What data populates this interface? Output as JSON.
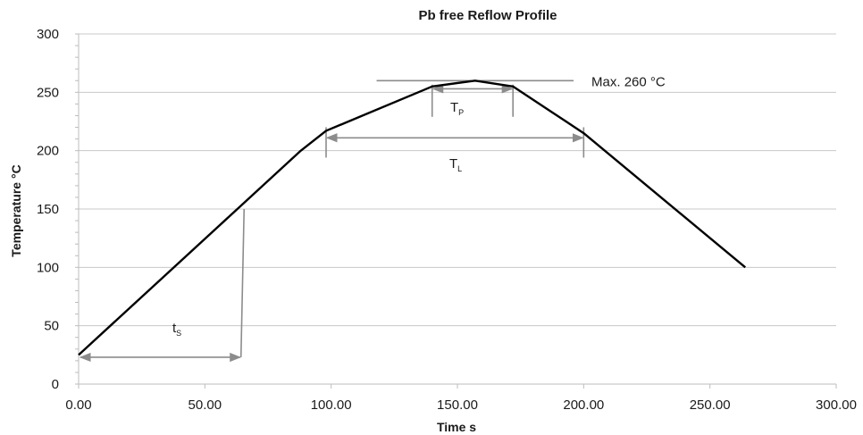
{
  "chart_data": {
    "type": "line",
    "title": "Pb free Reflow Profile",
    "xlabel": "Time s",
    "ylabel": "Temperature °C",
    "xlim": [
      0,
      300
    ],
    "ylim": [
      0,
      300
    ],
    "x_ticks": [
      "0.00",
      "50.00",
      "100.00",
      "150.00",
      "200.00",
      "250.00",
      "300.00"
    ],
    "y_ticks": [
      "0",
      "50",
      "100",
      "150",
      "200",
      "250",
      "300"
    ],
    "grid": "horizontal",
    "series": [
      {
        "color": "#000000",
        "points": [
          [
            0,
            25
          ],
          [
            88,
            200
          ],
          [
            98,
            217
          ],
          [
            140,
            255
          ],
          [
            157,
            260
          ],
          [
            172,
            255
          ],
          [
            200,
            215
          ],
          [
            264,
            100
          ]
        ]
      }
    ],
    "annotations": {
      "max_line": {
        "label": "Max. 260 °C",
        "y": 260,
        "x_start": 118,
        "x_end": 196
      },
      "tp": {
        "label": "T",
        "sub": "P",
        "x_start": 140,
        "x_end": 172,
        "y": 255
      },
      "tl": {
        "label": "T",
        "sub": "L",
        "x_start": 98,
        "x_end": 200,
        "y": 217
      },
      "ts": {
        "label": "t",
        "sub": "S",
        "x_start": 0,
        "x_end": 65,
        "y": 23
      }
    },
    "colors": {
      "profile": "#000000",
      "annotation": "#8c8c8c",
      "grid": "#c8c8c8"
    }
  }
}
